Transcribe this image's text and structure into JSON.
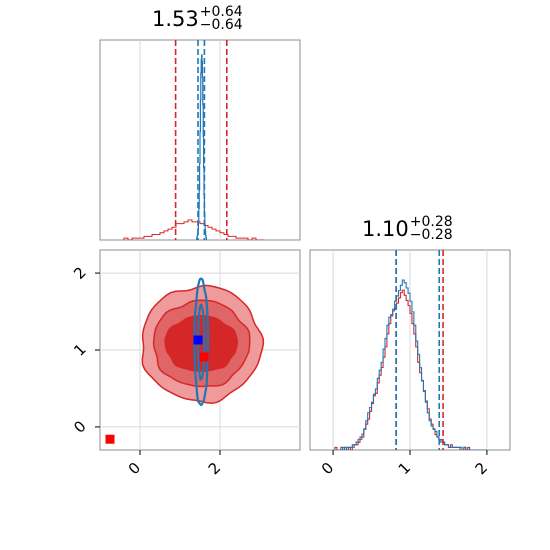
{
  "colors": {
    "red": "#d62728",
    "blue": "#1f77b4",
    "red_fill": "#ef9a9b",
    "red_dark_fill": "#d62728",
    "grid": "#d9d9d9",
    "marker_blue": "#0000ff",
    "marker_red": "#ff0000"
  },
  "chart_data": [
    {
      "type": "histogram",
      "panel": "top-left",
      "parameter_index": 0,
      "title": {
        "main": "1.53",
        "plus": "+0.64",
        "minus": "−0.64"
      },
      "xlim": [
        -1.0,
        4.0
      ],
      "blue_quantiles": [
        1.45,
        1.53,
        1.61
      ],
      "red_quantiles": [
        0.89,
        1.53,
        2.17
      ],
      "blue_bins": {
        "start": 1.4,
        "width": 0.01,
        "values": [
          0,
          0,
          1,
          2,
          3,
          5,
          8,
          14,
          22,
          34,
          48,
          62,
          74,
          80,
          82,
          79,
          72,
          60,
          46,
          32,
          20,
          12,
          7,
          4,
          2,
          1,
          0
        ]
      },
      "red_bins": {
        "start": -0.4,
        "width": 0.1,
        "values": [
          1,
          0,
          1,
          1,
          1,
          2,
          2,
          3,
          3,
          4,
          5,
          6,
          7,
          9,
          9,
          10,
          11,
          10,
          10,
          9,
          8,
          7,
          6,
          5,
          4,
          3,
          2,
          2,
          1,
          1,
          1,
          0,
          1,
          0,
          0
        ]
      }
    },
    {
      "type": "histogram",
      "panel": "bottom-right",
      "parameter_index": 1,
      "title": {
        "main": "1.10",
        "plus": "+0.28",
        "minus": "−0.28"
      },
      "xlim": [
        -0.3,
        2.3
      ],
      "xticks": [
        "0",
        "1",
        "2"
      ],
      "blue_quantiles": [
        0.82,
        1.1,
        1.38
      ],
      "red_quantiles": [
        0.82,
        1.1,
        1.43
      ],
      "blue_bins": {
        "start": 0.0,
        "width": 0.025,
        "values": [
          0,
          0,
          0,
          0,
          1,
          0,
          1,
          0,
          1,
          1,
          1,
          2,
          3,
          4,
          4,
          6,
          8,
          11,
          14,
          16,
          18,
          21,
          23,
          27,
          30,
          33,
          38,
          42,
          47,
          50,
          51,
          53,
          56,
          58,
          60,
          62,
          64,
          63,
          61,
          59,
          56,
          52,
          47,
          41,
          36,
          31,
          26,
          22,
          18,
          14,
          11,
          9,
          8,
          7,
          5,
          4,
          3,
          3,
          2,
          2,
          1,
          1,
          1,
          1,
          1,
          1,
          1,
          0,
          1,
          0,
          0,
          0,
          0,
          0,
          0,
          0,
          0,
          0,
          0,
          0
        ]
      },
      "red_bins": {
        "start": 0.0,
        "width": 0.025,
        "values": [
          0,
          1,
          0,
          0,
          0,
          1,
          0,
          1,
          1,
          0,
          2,
          2,
          2,
          3,
          5,
          5,
          8,
          10,
          12,
          15,
          18,
          21,
          22,
          26,
          29,
          32,
          36,
          40,
          45,
          49,
          52,
          54,
          55,
          57,
          59,
          61,
          62,
          60,
          58,
          56,
          53,
          49,
          45,
          40,
          34,
          30,
          27,
          23,
          19,
          16,
          12,
          10,
          8,
          6,
          5,
          4,
          4,
          3,
          2,
          2,
          1,
          2,
          1,
          1,
          1,
          1,
          0,
          0,
          1,
          0,
          1,
          0,
          0,
          0,
          0,
          0,
          0,
          0,
          0,
          0
        ]
      }
    },
    {
      "type": "contour",
      "panel": "bottom-left",
      "xlim": [
        -1.0,
        4.0
      ],
      "ylim": [
        -0.3,
        2.3
      ],
      "xticks": [
        "0",
        "2"
      ],
      "yticks": [
        "0",
        "1",
        "2"
      ],
      "red_contours": [
        {
          "level": "outer",
          "cx": 1.53,
          "cy": 1.08,
          "rx": 1.5,
          "ry": 0.75
        },
        {
          "level": "middle",
          "cx": 1.53,
          "cy": 1.08,
          "rx": 1.2,
          "ry": 0.56
        },
        {
          "level": "inner",
          "cx": 1.53,
          "cy": 1.08,
          "rx": 0.9,
          "ry": 0.36
        }
      ],
      "blue_contours": [
        {
          "level": "outer",
          "cx": 1.53,
          "cy": 1.1,
          "rx": 0.17,
          "ry": 0.82
        },
        {
          "level": "inner",
          "cx": 1.53,
          "cy": 1.1,
          "rx": 0.08,
          "ry": 0.48
        }
      ],
      "markers": [
        {
          "series": "blue",
          "x": 1.45,
          "y": 1.13
        },
        {
          "series": "red",
          "x": 1.6,
          "y": 0.91
        },
        {
          "series": "red",
          "x": -0.75,
          "y": -0.16
        }
      ]
    }
  ]
}
